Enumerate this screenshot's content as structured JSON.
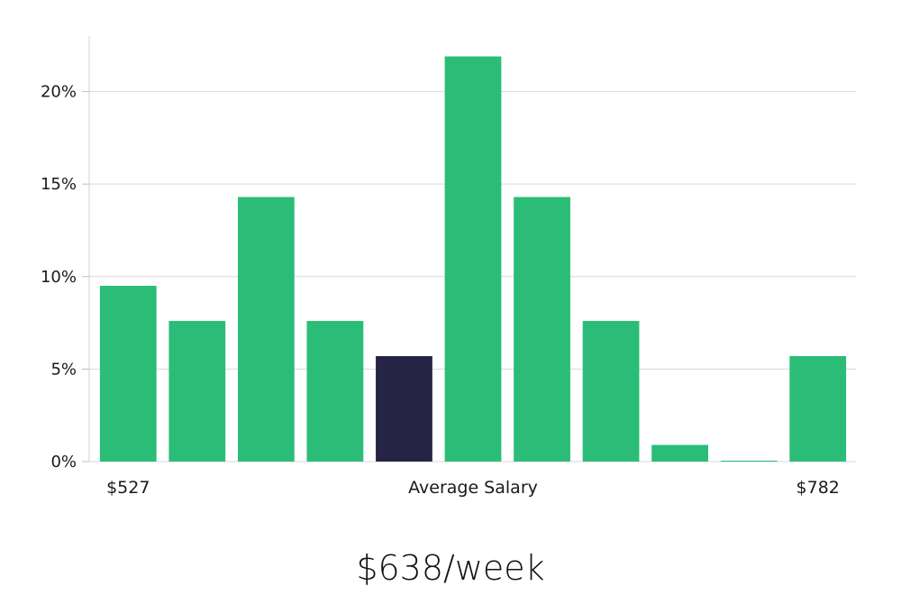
{
  "chart_data": {
    "type": "bar",
    "values": [
      9.5,
      7.6,
      14.3,
      7.6,
      5.7,
      21.9,
      14.3,
      7.6,
      0.9,
      0.05,
      5.7
    ],
    "highlight_index": 4,
    "y_ticks": [
      "0%",
      "5%",
      "10%",
      "15%",
      "20%"
    ],
    "y_tick_values": [
      0,
      5,
      10,
      15,
      20
    ],
    "ylim": [
      0,
      23
    ],
    "x_labels": {
      "left": "$527",
      "center": "Average Salary",
      "right": "$782"
    },
    "grid": true,
    "colors": {
      "bar": "#2bbd77",
      "highlight": "#262444",
      "grid": "#d9d9d9"
    }
  },
  "headline": "$638/week"
}
